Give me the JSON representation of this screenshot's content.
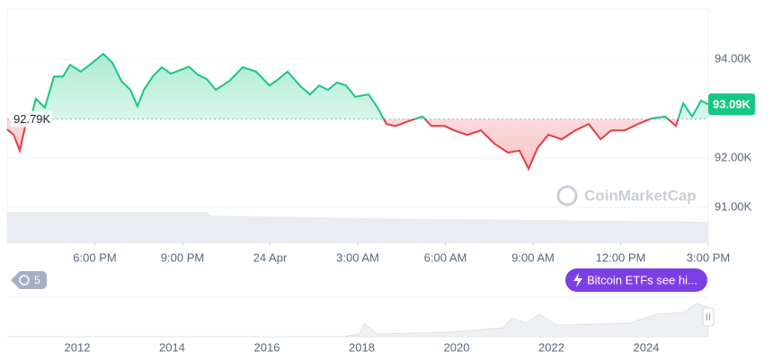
{
  "chart_data": {
    "type": "line",
    "x": [
      0,
      0.22,
      0.43,
      0.62,
      0.83,
      0.98,
      1.29,
      1.6,
      1.91,
      2.15,
      2.52,
      2.83,
      3.29,
      3.6,
      3.91,
      4.22,
      4.46,
      4.68,
      4.98,
      5.29,
      5.6,
      5.91,
      6.22,
      6.52,
      6.83,
      7.14,
      7.6,
      8.06,
      8.52,
      8.98,
      9.29,
      9.6,
      10.06,
      10.37,
      10.68,
      10.98,
      11.29,
      11.6,
      11.91,
      12.37,
      12.68,
      12.98,
      13.29,
      13.75,
      14.22,
      14.52,
      14.98,
      15.29,
      15.75,
      16.22,
      16.68,
      17.14,
      17.54,
      17.85,
      18.15,
      18.52,
      18.98,
      19.45,
      19.91,
      20.31,
      20.68,
      21.14,
      21.6,
      22.06,
      22.52,
      22.89,
      23.14,
      23.45,
      23.75,
      24
    ],
    "values": [
      92.58,
      92.47,
      92.15,
      92.65,
      92.84,
      93.2,
      93.02,
      93.65,
      93.65,
      93.89,
      93.75,
      93.89,
      94.11,
      93.93,
      93.56,
      93.38,
      93.05,
      93.38,
      93.65,
      93.84,
      93.71,
      93.78,
      93.85,
      93.69,
      93.6,
      93.38,
      93.56,
      93.84,
      93.75,
      93.47,
      93.6,
      93.75,
      93.44,
      93.29,
      93.47,
      93.38,
      93.53,
      93.47,
      93.24,
      93.29,
      93.02,
      92.69,
      92.65,
      92.75,
      92.84,
      92.65,
      92.65,
      92.56,
      92.47,
      92.56,
      92.29,
      92.11,
      92.15,
      91.78,
      92.2,
      92.47,
      92.38,
      92.56,
      92.69,
      92.38,
      92.56,
      92.56,
      92.69,
      92.8,
      92.84,
      92.65,
      93.11,
      92.84,
      93.16,
      93.09
    ],
    "colors": {
      "above": "#16c784",
      "below": "#ea3943"
    },
    "xlim": [
      0,
      24
    ],
    "xticks": [
      {
        "value": 3,
        "label": "6:00 PM"
      },
      {
        "value": 6,
        "label": "9:00 PM"
      },
      {
        "value": 9,
        "label": "24 Apr"
      },
      {
        "value": 12,
        "label": "3:00 AM"
      },
      {
        "value": 15,
        "label": "6:00 AM"
      },
      {
        "value": 18,
        "label": "9:00 AM"
      },
      {
        "value": 21,
        "label": "12:00 PM"
      },
      {
        "value": 24,
        "label": "3:00 PM"
      }
    ],
    "ylim": [
      90.29,
      95.02
    ],
    "yticks": [
      {
        "value": 91,
        "label": "91.00K"
      },
      {
        "value": 92,
        "label": "92.00K"
      },
      {
        "value": 94,
        "label": "94.00K"
      }
    ],
    "grid": true,
    "baseline": {
      "value": 92.79,
      "label": "92.79K"
    },
    "last_price": {
      "value": 93.09,
      "label": "93.09K"
    },
    "watermark": "CoinMarketCap"
  },
  "history_badge": "5",
  "news_pill": "Bitcoin ETFs see hi...",
  "navigator": {
    "labels": [
      "2012",
      "2014",
      "2016",
      "2018",
      "2020",
      "2022",
      "2024"
    ]
  }
}
